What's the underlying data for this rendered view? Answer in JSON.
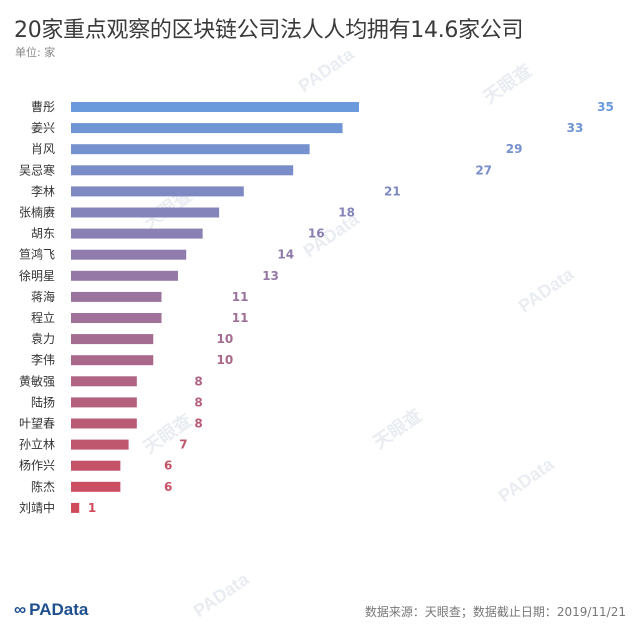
{
  "title": "20家重点观察的区块链公司法人人均拥有14.6家公司",
  "unit": "单位: 家",
  "footer": {
    "logo": "PAData",
    "source": "数据来源：天眼查；数据截止日期：2019/11/21"
  },
  "watermarks": [
    "PAData",
    "天眼查"
  ],
  "colors": {
    "top": "#6a99dc",
    "bottom": "#cf4b5b"
  },
  "chart_data": {
    "type": "bar",
    "orientation": "horizontal",
    "title": "20家重点观察的区块链公司法人人均拥有14.6家公司",
    "categories": [
      "曹彤",
      "姜兴",
      "肖风",
      "吴忌寒",
      "李林",
      "张楠赓",
      "胡东",
      "笪鸿飞",
      "徐明星",
      "蒋海",
      "程立",
      "袁力",
      "李伟",
      "黄敏强",
      "陆扬",
      "叶望春",
      "孙立林",
      "杨作兴",
      "陈杰",
      "刘靖中"
    ],
    "values": [
      35,
      33,
      29,
      27,
      21,
      18,
      16,
      14,
      13,
      11,
      11,
      10,
      10,
      8,
      8,
      8,
      7,
      6,
      6,
      1
    ],
    "value_labels": [
      "35",
      "33",
      "29",
      "27",
      "21",
      "18",
      "16",
      "14",
      "13",
      "11",
      "11",
      "10",
      "10",
      "8",
      "8",
      "8",
      "7",
      "6",
      "6",
      "1"
    ],
    "xlim": [
      0,
      35
    ],
    "grid": false,
    "legend": "none"
  }
}
